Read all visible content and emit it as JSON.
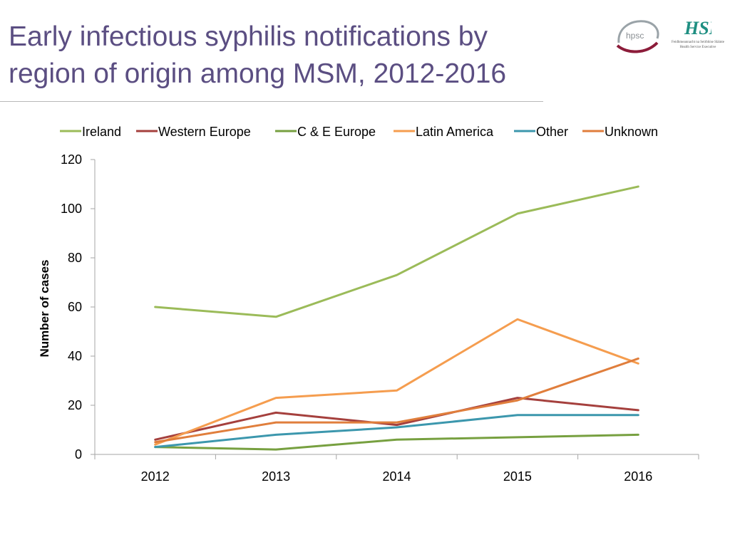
{
  "slide": {
    "title_line1": "Early infectious syphilis  notifications by",
    "title_line2": "region of origin among MSM, 2012-2016"
  },
  "logos": {
    "hpsc_text": "hpsc",
    "hse_text": "HSE",
    "hse_sub_line1": "Feidhmeannacht na Seirbhíse Sláinte",
    "hse_sub_line2": "Health Service Executive"
  },
  "chart_data": {
    "type": "line",
    "title": "",
    "xlabel": "",
    "ylabel": "Number of cases",
    "categories": [
      "2012",
      "2013",
      "2014",
      "2015",
      "2016"
    ],
    "ylim": [
      0,
      120
    ],
    "yticks": [
      0,
      20,
      40,
      60,
      80,
      100,
      120
    ],
    "legend_position": "top",
    "grid": false,
    "series": [
      {
        "name": "Ireland",
        "color": "#9bbb59",
        "values": [
          60,
          56,
          73,
          98,
          109
        ]
      },
      {
        "name": "Western Europe",
        "color": "#a5403d",
        "values": [
          6,
          17,
          12,
          23,
          18
        ]
      },
      {
        "name": "C & E Europe",
        "color": "#77a040",
        "values": [
          3,
          2,
          6,
          7,
          8
        ]
      },
      {
        "name": "Latin America",
        "color": "#f59d4f",
        "values": [
          4,
          23,
          26,
          55,
          37
        ]
      },
      {
        "name": "Other",
        "color": "#3c97ad",
        "values": [
          3,
          8,
          11,
          16,
          16
        ]
      },
      {
        "name": "Unknown",
        "color": "#e07e3c",
        "values": [
          5,
          13,
          13,
          22,
          39
        ]
      }
    ]
  }
}
